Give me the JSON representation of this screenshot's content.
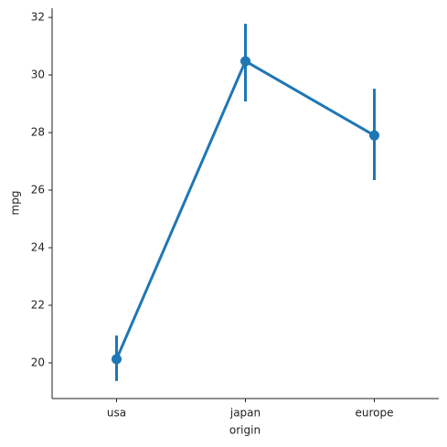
{
  "chart_data": {
    "type": "pointplot",
    "x_label": "origin",
    "y_label": "mpg",
    "categories": [
      "usa",
      "japan",
      "europe"
    ],
    "values": [
      20.13,
      30.48,
      27.9
    ],
    "ci_low": [
      19.37,
      29.08,
      26.35
    ],
    "ci_high": [
      20.95,
      31.78,
      29.52
    ],
    "color": "#1f77b4",
    "ylim": [
      18.76,
      32.32
    ],
    "yticks": [
      20,
      22,
      24,
      26,
      28,
      30,
      32
    ]
  }
}
